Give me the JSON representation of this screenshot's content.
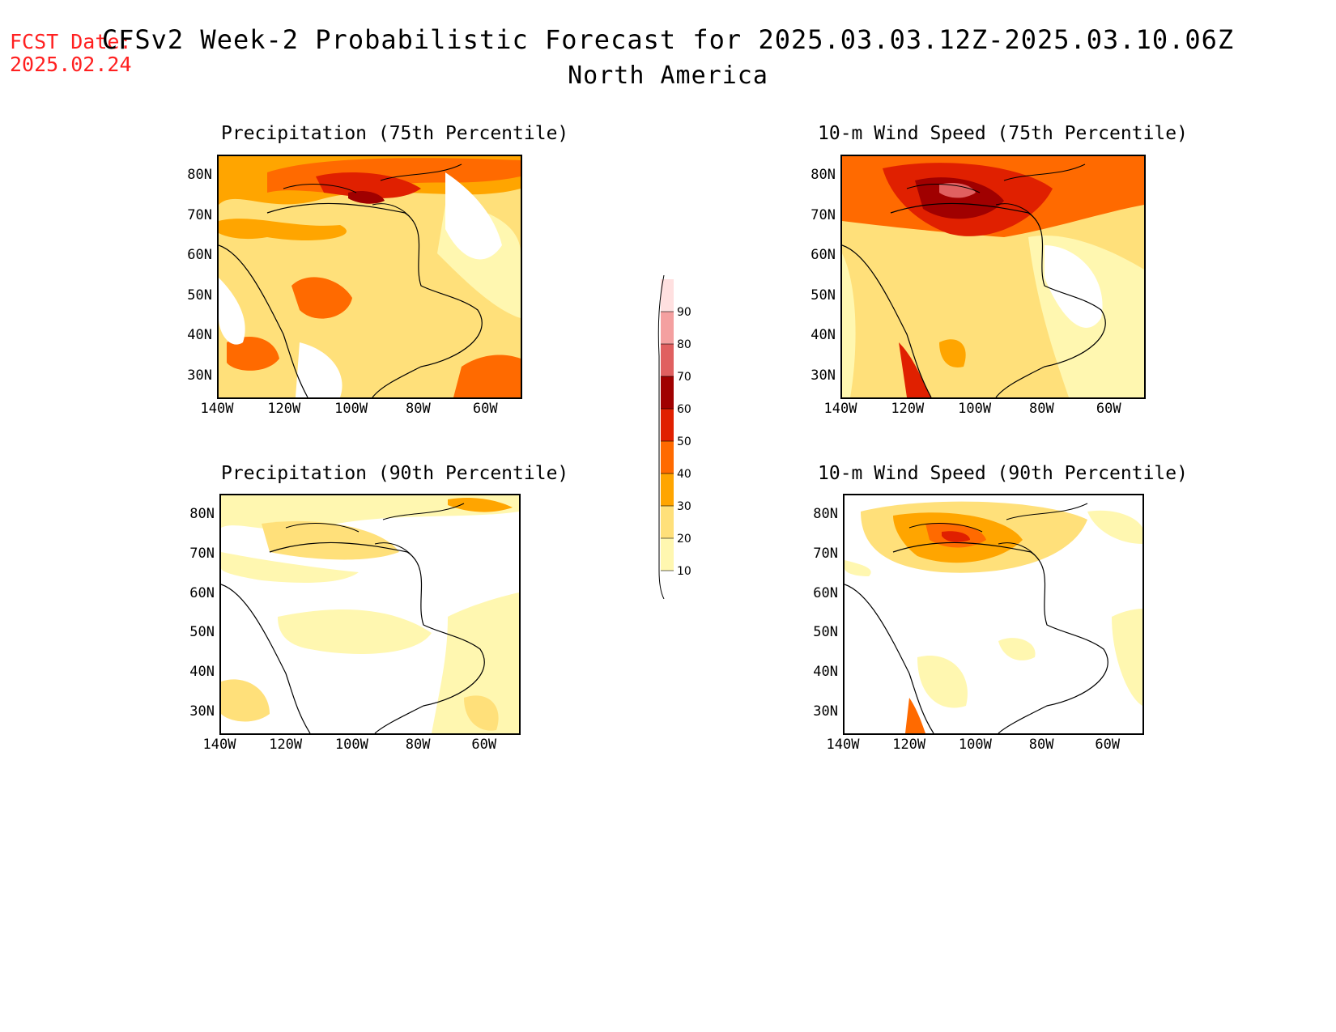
{
  "fcst_date_label": "FCST Date:",
  "fcst_date_value": "2025.02.24",
  "title_line1": "CFSv2 Week-2 Probabilistic Forecast for 2025.03.03.12Z-2025.03.10.06Z",
  "title_line2": "North America",
  "panels": [
    {
      "title": "Precipitation (75th Percentile)"
    },
    {
      "title": "10-m Wind Speed (75th Percentile)"
    },
    {
      "title": "Precipitation (90th Percentile)"
    },
    {
      "title": "10-m Wind Speed (90th Percentile)"
    }
  ],
  "lat_labels": [
    "80N",
    "70N",
    "60N",
    "50N",
    "40N",
    "30N"
  ],
  "lon_labels": [
    "140W",
    "120W",
    "100W",
    "80W",
    "60W"
  ],
  "colorbar": {
    "levels": [
      "10",
      "20",
      "30",
      "40",
      "50",
      "60",
      "70",
      "80",
      "90"
    ],
    "colors": [
      "#fff7b0",
      "#ffe07a",
      "#ffa500",
      "#ff6a00",
      "#e02000",
      "#a00000",
      "#e06060",
      "#f4a0a0",
      "#ffe0e0"
    ]
  }
}
